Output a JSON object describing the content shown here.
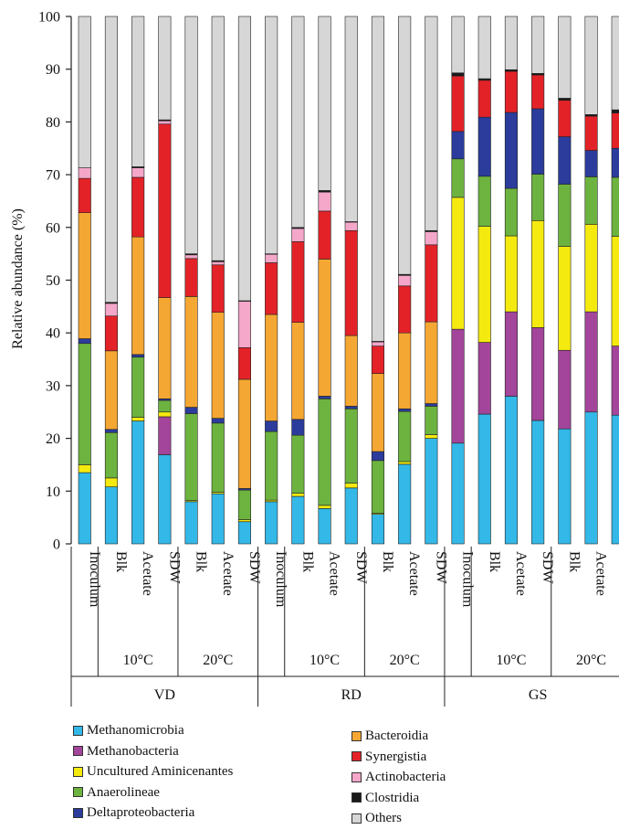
{
  "chart_data": {
    "type": "bar",
    "stacked": true,
    "ylabel": "Relative abundance (%)",
    "ylim": [
      0,
      100
    ],
    "y_ticks": [
      0,
      10,
      20,
      30,
      40,
      50,
      60,
      70,
      80,
      90,
      100
    ],
    "categories": [
      "Inoculum",
      "Blk",
      "Acetate",
      "SDW",
      "Blk",
      "Acetate",
      "SDW",
      "Inoculum",
      "Blk",
      "Acetate",
      "SDW",
      "Blk",
      "Acetate",
      "SDW",
      "Inoculum",
      "Blk",
      "Acetate",
      "SDW",
      "Blk",
      "Acetate",
      "SDW"
    ],
    "category_tick_labels": [
      "Inoculum",
      "Blk",
      "Acetate",
      "SDW",
      "Blk",
      "Acetate",
      "SDW",
      "Inoculum",
      "Blk",
      "Acetate",
      "SDW",
      "Blk",
      "Acetate",
      "SDW",
      "Inoculum",
      "Blk",
      "Acetate",
      "SDW",
      "Blk",
      "Acetate",
      "SDW"
    ],
    "temperature_groups": [
      {
        "label": "10°C",
        "bars": [
          1,
          3
        ]
      },
      {
        "label": "20°C",
        "bars": [
          4,
          6
        ]
      },
      {
        "label": "10°C",
        "bars": [
          8,
          10
        ]
      },
      {
        "label": "20°C",
        "bars": [
          11,
          13
        ]
      },
      {
        "label": "10°C",
        "bars": [
          15,
          17
        ]
      },
      {
        "label": "20°C",
        "bars": [
          18,
          20
        ]
      }
    ],
    "site_groups": [
      {
        "label": "VD",
        "bars": [
          0,
          6
        ]
      },
      {
        "label": "RD",
        "bars": [
          7,
          13
        ]
      },
      {
        "label": "GS",
        "bars": [
          14,
          20
        ]
      }
    ],
    "series": [
      {
        "name": "Methanomicrobia",
        "color": "#33b8e8",
        "values": [
          13.5,
          10.8,
          23.3,
          16.9,
          8.0,
          9.5,
          4.2,
          8.0,
          9.0,
          6.7,
          10.6,
          5.6,
          15.1,
          20.0,
          19.1,
          24.6,
          28.0,
          23.4,
          21.8,
          25.0,
          24.4
        ]
      },
      {
        "name": "Methanobacteria",
        "color": "#a3459a",
        "values": [
          0,
          0,
          0,
          7.2,
          0,
          0,
          0,
          0,
          0,
          0,
          0,
          0,
          0,
          0,
          21.6,
          13.6,
          16.0,
          17.6,
          14.9,
          19.0,
          13.1
        ]
      },
      {
        "name": "Uncultured Aminicenantes",
        "color": "#f5ea0f",
        "values": [
          1.5,
          1.7,
          0.7,
          0.9,
          0.2,
          0.3,
          0.4,
          0.3,
          0.6,
          0.6,
          0.9,
          0.2,
          0.5,
          0.7,
          25.0,
          22.0,
          14.4,
          20.3,
          19.7,
          16.6,
          20.8
        ]
      },
      {
        "name": "Anaerolineae",
        "color": "#6db33f",
        "values": [
          23.0,
          8.6,
          11.4,
          2.2,
          16.5,
          13.1,
          5.6,
          13.0,
          11.0,
          20.2,
          14.1,
          10.0,
          9.5,
          5.4,
          7.3,
          9.5,
          9.0,
          8.8,
          11.8,
          9.0,
          11.2
        ]
      },
      {
        "name": "Deltaproteobacteria",
        "color": "#2b3c9c",
        "values": [
          0.9,
          0.6,
          0.5,
          0.3,
          1.2,
          0.9,
          0.3,
          2.0,
          3.0,
          0.5,
          0.5,
          1.7,
          0.5,
          0.5,
          5.2,
          11.2,
          14.4,
          12.4,
          9.0,
          5.0,
          5.5
        ]
      },
      {
        "name": "Bacteroidia",
        "color": "#f5a733",
        "values": [
          23.9,
          14.9,
          22.3,
          19.2,
          21.0,
          20.1,
          20.7,
          20.2,
          18.4,
          26.0,
          13.4,
          14.8,
          14.4,
          15.5,
          0,
          0,
          0,
          0,
          0,
          0,
          0
        ]
      },
      {
        "name": "Synergistia",
        "color": "#e32228",
        "values": [
          6.5,
          6.6,
          11.3,
          32.9,
          7.2,
          9.0,
          6.0,
          9.8,
          15.3,
          9.1,
          19.9,
          5.2,
          8.9,
          14.6,
          10.5,
          7.0,
          7.8,
          6.4,
          6.9,
          6.5,
          6.7
        ]
      },
      {
        "name": "Actinobacteria",
        "color": "#f4a7c9",
        "values": [
          2.0,
          2.4,
          1.8,
          0.6,
          0.7,
          0.6,
          8.8,
          1.6,
          2.5,
          3.6,
          1.6,
          0.8,
          2.0,
          2.5,
          0,
          0,
          0,
          0,
          0,
          0,
          0
        ]
      },
      {
        "name": "Clostridia",
        "color": "#1a1a1a",
        "values": [
          0,
          0.2,
          0.2,
          0.2,
          0.2,
          0.2,
          0.1,
          0.1,
          0.2,
          0.3,
          0.1,
          0.1,
          0.2,
          0.2,
          0.6,
          0.3,
          0.3,
          0.3,
          0.4,
          0.3,
          0.6
        ]
      },
      {
        "name": "Others",
        "color": "#d6d6d6",
        "values": [
          28.7,
          54.2,
          28.5,
          19.6,
          45.0,
          46.3,
          53.9,
          45.0,
          40.0,
          33.0,
          38.9,
          61.6,
          48.9,
          40.6,
          10.7,
          11.8,
          10.1,
          10.8,
          15.5,
          18.6,
          17.7
        ]
      }
    ],
    "legend": {
      "left_column": [
        "Methanomicrobia",
        "Methanobacteria",
        "Uncultured Aminicenantes",
        "Anaerolineae",
        "Deltaproteobacteria"
      ],
      "right_column": [
        "Bacteroidia",
        "Synergistia",
        "Actinobacteria",
        "Clostridia",
        "Others"
      ],
      "placement": "bottom"
    },
    "grid": false
  }
}
